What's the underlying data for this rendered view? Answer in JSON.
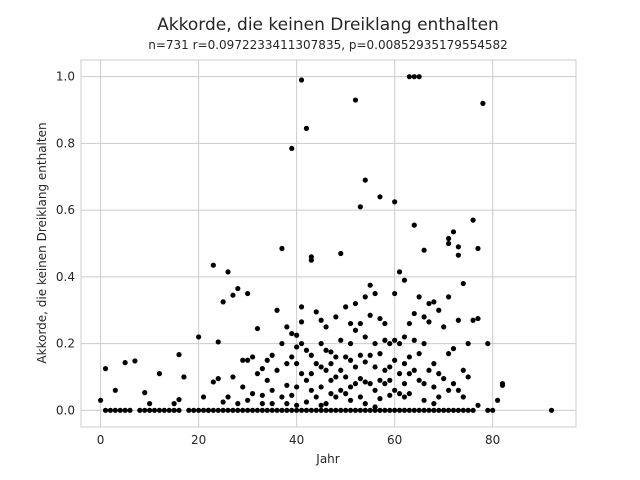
{
  "chart_data": {
    "type": "scatter",
    "title": "Akkorde, die keinen Dreiklang enthalten",
    "subtitle": "n=731 r=0.0972233411307835, p=0.00852935179554582",
    "xlabel": "Jahr",
    "ylabel": "Akkorde, die keinen Dreiklang enthalten",
    "xlim": [
      -4,
      97
    ],
    "ylim": [
      -0.05,
      1.05
    ],
    "xticks": [
      0,
      20,
      40,
      60,
      80
    ],
    "yticks": [
      0.0,
      0.2,
      0.4,
      0.6,
      0.8,
      1.0
    ],
    "ytick_labels": [
      "0.0",
      "0.2",
      "0.4",
      "0.6",
      "0.8",
      "1.0"
    ],
    "grid": true,
    "marker_color": "#000000",
    "points": [
      [
        0,
        0.03
      ],
      [
        1,
        0.125
      ],
      [
        1,
        0
      ],
      [
        2,
        0
      ],
      [
        3,
        0
      ],
      [
        3,
        0.06
      ],
      [
        4,
        0
      ],
      [
        5,
        0
      ],
      [
        5,
        0.143
      ],
      [
        6,
        0
      ],
      [
        7,
        0.148
      ],
      [
        8,
        0
      ],
      [
        9,
        0
      ],
      [
        9,
        0.053
      ],
      [
        10,
        0
      ],
      [
        10,
        0.02
      ],
      [
        11,
        0
      ],
      [
        12,
        0
      ],
      [
        12,
        0.11
      ],
      [
        13,
        0
      ],
      [
        14,
        0
      ],
      [
        15,
        0
      ],
      [
        15,
        0.02
      ],
      [
        16,
        0
      ],
      [
        16,
        0.032
      ],
      [
        16,
        0.167
      ],
      [
        17,
        0.1
      ],
      [
        18,
        0
      ],
      [
        19,
        0
      ],
      [
        20,
        0
      ],
      [
        20,
        0.22
      ],
      [
        21,
        0
      ],
      [
        21,
        0.04
      ],
      [
        22,
        0
      ],
      [
        22,
        0
      ],
      [
        23,
        0
      ],
      [
        23,
        0.085
      ],
      [
        23,
        0.435
      ],
      [
        24,
        0
      ],
      [
        24,
        0.205
      ],
      [
        24,
        0.095
      ],
      [
        25,
        0
      ],
      [
        25,
        0.325
      ],
      [
        25,
        0.025
      ],
      [
        26,
        0
      ],
      [
        26,
        0.415
      ],
      [
        26,
        0.04
      ],
      [
        27,
        0
      ],
      [
        27,
        0.345
      ],
      [
        27,
        0.1
      ],
      [
        28,
        0
      ],
      [
        28,
        0.02
      ],
      [
        28,
        0.365
      ],
      [
        29,
        0
      ],
      [
        29,
        0.15
      ],
      [
        29,
        0.07
      ],
      [
        30,
        0
      ],
      [
        30,
        0.35
      ],
      [
        30,
        0.15
      ],
      [
        30,
        0.03
      ],
      [
        31,
        0
      ],
      [
        31,
        0.05
      ],
      [
        31,
        0.16
      ],
      [
        32,
        0
      ],
      [
        32,
        0.245
      ],
      [
        32,
        0.11
      ],
      [
        33,
        0
      ],
      [
        33,
        0.02
      ],
      [
        33,
        0.045
      ],
      [
        33,
        0.125
      ],
      [
        34,
        0
      ],
      [
        34,
        0.15
      ],
      [
        34,
        0.09
      ],
      [
        35,
        0
      ],
      [
        35,
        0.165
      ],
      [
        35,
        0.06
      ],
      [
        35,
        0.02
      ],
      [
        36,
        0
      ],
      [
        36,
        0.3
      ],
      [
        36,
        0.12
      ],
      [
        37,
        0
      ],
      [
        37,
        0.485
      ],
      [
        37,
        0.2
      ],
      [
        37,
        0.04
      ],
      [
        38,
        0
      ],
      [
        38,
        0.25
      ],
      [
        38,
        0.14
      ],
      [
        38,
        0.075
      ],
      [
        38,
        0.02
      ],
      [
        39,
        0
      ],
      [
        39,
        0.785
      ],
      [
        39,
        0.23
      ],
      [
        39,
        0.16
      ],
      [
        39,
        0.045
      ],
      [
        40,
        0
      ],
      [
        40,
        0.225
      ],
      [
        40,
        0.19
      ],
      [
        40,
        0.14
      ],
      [
        40,
        0.07
      ],
      [
        40,
        0.015
      ],
      [
        41,
        0.99
      ],
      [
        41,
        0.31
      ],
      [
        41,
        0.265
      ],
      [
        41,
        0.2
      ],
      [
        41,
        0.11
      ],
      [
        41,
        0
      ],
      [
        42,
        0.845
      ],
      [
        42,
        0.18
      ],
      [
        42,
        0.09
      ],
      [
        42,
        0.025
      ],
      [
        42,
        0
      ],
      [
        43,
        0.46
      ],
      [
        43,
        0.45
      ],
      [
        43,
        0.165
      ],
      [
        43,
        0.11
      ],
      [
        43,
        0.06
      ],
      [
        43,
        0
      ],
      [
        44,
        0.295
      ],
      [
        44,
        0.14
      ],
      [
        44,
        0.04
      ],
      [
        44,
        0
      ],
      [
        45,
        0.27
      ],
      [
        45,
        0.2
      ],
      [
        45,
        0.13
      ],
      [
        45,
        0.07
      ],
      [
        45,
        0.015
      ],
      [
        45,
        0
      ],
      [
        46,
        0.25
      ],
      [
        46,
        0.18
      ],
      [
        46,
        0.12
      ],
      [
        46,
        0.02
      ],
      [
        46,
        0
      ],
      [
        47,
        0.175
      ],
      [
        47,
        0.14
      ],
      [
        47,
        0.09
      ],
      [
        47,
        0.05
      ],
      [
        47,
        0
      ],
      [
        48,
        0.28
      ],
      [
        48,
        0.16
      ],
      [
        48,
        0.1
      ],
      [
        48,
        0.04
      ],
      [
        48,
        0
      ],
      [
        49,
        0.47
      ],
      [
        49,
        0.21
      ],
      [
        49,
        0.12
      ],
      [
        49,
        0.06
      ],
      [
        49,
        0
      ],
      [
        50,
        0.31
      ],
      [
        50,
        0.16
      ],
      [
        50,
        0.1
      ],
      [
        50,
        0.05
      ],
      [
        50,
        0
      ],
      [
        51,
        0.26
      ],
      [
        51,
        0.2
      ],
      [
        51,
        0.15
      ],
      [
        51,
        0.07
      ],
      [
        51,
        0.03
      ],
      [
        51,
        0
      ],
      [
        52,
        0.93
      ],
      [
        52,
        0.32
      ],
      [
        52,
        0.24
      ],
      [
        52,
        0.13
      ],
      [
        52,
        0.08
      ],
      [
        52,
        0
      ],
      [
        53,
        0.61
      ],
      [
        53,
        0.26
      ],
      [
        53,
        0.165
      ],
      [
        53,
        0.095
      ],
      [
        53,
        0.04
      ],
      [
        53,
        0
      ],
      [
        54,
        0.69
      ],
      [
        54,
        0.34
      ],
      [
        54,
        0.22
      ],
      [
        54,
        0.145
      ],
      [
        54,
        0.085
      ],
      [
        54,
        0.02
      ],
      [
        54,
        0
      ],
      [
        55,
        0.375
      ],
      [
        55,
        0.285
      ],
      [
        55,
        0.165
      ],
      [
        55,
        0.08
      ],
      [
        55,
        0
      ],
      [
        56,
        0.35
      ],
      [
        56,
        0.2
      ],
      [
        56,
        0.13
      ],
      [
        56,
        0.06
      ],
      [
        56,
        0.01
      ],
      [
        56,
        0
      ],
      [
        57,
        0.64
      ],
      [
        57,
        0.275
      ],
      [
        57,
        0.17
      ],
      [
        57,
        0.09
      ],
      [
        57,
        0.035
      ],
      [
        57,
        0
      ],
      [
        58,
        0.26
      ],
      [
        58,
        0.21
      ],
      [
        58,
        0.12
      ],
      [
        58,
        0.08
      ],
      [
        58,
        0
      ],
      [
        59,
        0.2
      ],
      [
        59,
        0.13
      ],
      [
        59,
        0.09
      ],
      [
        59,
        0.045
      ],
      [
        59,
        0
      ],
      [
        60,
        0.625
      ],
      [
        60,
        0.35
      ],
      [
        60,
        0.21
      ],
      [
        60,
        0.15
      ],
      [
        60,
        0.06
      ],
      [
        60,
        0
      ],
      [
        61,
        0.415
      ],
      [
        61,
        0.2
      ],
      [
        61,
        0.11
      ],
      [
        61,
        0.05
      ],
      [
        61,
        0
      ],
      [
        62,
        0.39
      ],
      [
        62,
        0.22
      ],
      [
        62,
        0.14
      ],
      [
        62,
        0.08
      ],
      [
        62,
        0.04
      ],
      [
        62,
        0
      ],
      [
        63,
        1.0
      ],
      [
        63,
        0.26
      ],
      [
        63,
        0.16
      ],
      [
        63,
        0.11
      ],
      [
        63,
        0.05
      ],
      [
        63,
        0
      ],
      [
        64,
        1.0
      ],
      [
        64,
        0.555
      ],
      [
        64,
        0.29
      ],
      [
        64,
        0.21
      ],
      [
        64,
        0.12
      ],
      [
        64,
        0
      ],
      [
        65,
        1.0
      ],
      [
        65,
        0.34
      ],
      [
        65,
        0.17
      ],
      [
        65,
        0.09
      ],
      [
        65,
        0
      ],
      [
        66,
        0.48
      ],
      [
        66,
        0.28
      ],
      [
        66,
        0.2
      ],
      [
        66,
        0.08
      ],
      [
        66,
        0.03
      ],
      [
        66,
        0
      ],
      [
        67,
        0.32
      ],
      [
        67,
        0.265
      ],
      [
        67,
        0.12
      ],
      [
        67,
        0
      ],
      [
        68,
        0.325
      ],
      [
        68,
        0.14
      ],
      [
        68,
        0.07
      ],
      [
        68,
        0.02
      ],
      [
        68,
        0
      ],
      [
        69,
        0.3
      ],
      [
        69,
        0.11
      ],
      [
        69,
        0.04
      ],
      [
        69,
        0
      ],
      [
        70,
        0.25
      ],
      [
        70,
        0.095
      ],
      [
        70,
        0
      ],
      [
        71,
        0.515
      ],
      [
        71,
        0.5
      ],
      [
        71,
        0.34
      ],
      [
        71,
        0.17
      ],
      [
        71,
        0.06
      ],
      [
        71,
        0
      ],
      [
        72,
        0.535
      ],
      [
        72,
        0.185
      ],
      [
        72,
        0.08
      ],
      [
        72,
        0
      ],
      [
        73,
        0.49
      ],
      [
        73,
        0.465
      ],
      [
        73,
        0.27
      ],
      [
        73,
        0.06
      ],
      [
        73,
        0
      ],
      [
        74,
        0.38
      ],
      [
        74,
        0.12
      ],
      [
        74,
        0.04
      ],
      [
        74,
        0
      ],
      [
        75,
        0.2
      ],
      [
        75,
        0.1
      ],
      [
        75,
        0
      ],
      [
        76,
        0.57
      ],
      [
        76,
        0.27
      ],
      [
        76,
        0
      ],
      [
        77,
        0.485
      ],
      [
        77,
        0.275
      ],
      [
        77,
        0.015
      ],
      [
        78,
        0.92
      ],
      [
        79,
        0.2
      ],
      [
        79,
        0
      ],
      [
        80,
        0
      ],
      [
        81,
        0.03
      ],
      [
        82,
        0.08
      ],
      [
        82,
        0.075
      ],
      [
        92,
        0
      ]
    ]
  }
}
